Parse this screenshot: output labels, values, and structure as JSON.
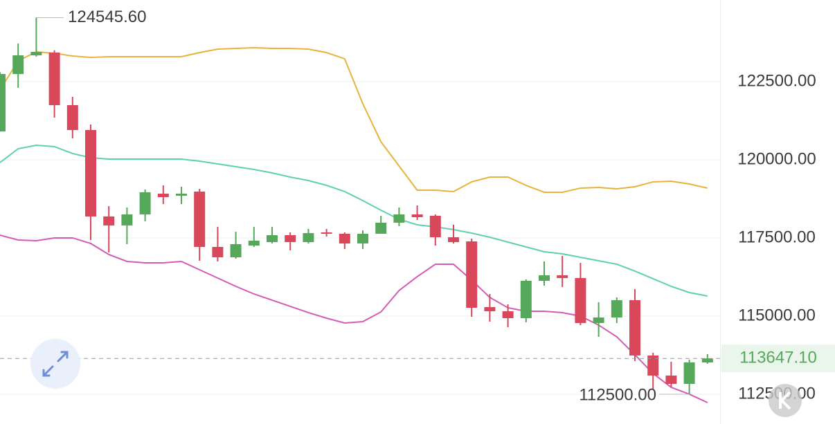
{
  "chart_data": {
    "type": "candlestick",
    "up_color": "#55a85a",
    "down_color": "#d9475a",
    "ylim": [
      111550,
      125110
    ],
    "yticks": [
      {
        "value": 122500,
        "label": "122500.00"
      },
      {
        "value": 120000,
        "label": "120000.00"
      },
      {
        "value": 117500,
        "label": "117500.00"
      },
      {
        "value": 115000,
        "label": "115000.00"
      },
      {
        "value": 112500,
        "label": "112500.00"
      }
    ],
    "grid": true,
    "open": [
      120907,
      122743,
      123341,
      123430,
      121748,
      120952,
      118187,
      117900,
      118253,
      118916,
      118850,
      118983,
      117213,
      116882,
      117257,
      117368,
      117589,
      117368,
      117678,
      117634,
      117324,
      117634,
      117988,
      118253,
      118209,
      117523,
      117390,
      115289,
      115156,
      114935,
      116129,
      116306,
      116218,
      114780,
      114957,
      115510,
      113740,
      113099,
      112833,
      113519
    ],
    "high": [
      122800,
      123717,
      124545.6,
      123500,
      122013,
      121129,
      118518,
      118474,
      119049,
      119182,
      119137,
      119071,
      117855,
      117700,
      117855,
      117855,
      117678,
      117789,
      117789,
      117678,
      117744,
      118209,
      118474,
      118540,
      118253,
      117921,
      117479,
      115709,
      115377,
      116173,
      116749,
      116926,
      116705,
      115444,
      115599,
      115864,
      113829,
      113541,
      113608,
      113785
    ],
    "low": [
      120900,
      122301,
      123300,
      121350,
      120686,
      117435,
      117036,
      117302,
      118032,
      118584,
      118584,
      116771,
      116749,
      116838,
      117213,
      117324,
      117103,
      117324,
      117545,
      117147,
      117147,
      117634,
      117877,
      118076,
      117257,
      117324,
      114979,
      114824,
      114647,
      114802,
      115975,
      115931,
      114714,
      114338,
      114780,
      113563,
      112678,
      112723,
      112500,
      113475
    ],
    "close": [
      122743,
      123341,
      123451,
      121748,
      120952,
      118187,
      117900,
      118253,
      118960,
      118806,
      118916,
      117213,
      116882,
      117302,
      117413,
      117589,
      117368,
      117655,
      117634,
      117324,
      117634,
      117988,
      118253,
      118164,
      117523,
      117368,
      115267,
      115156,
      114935,
      116129,
      116306,
      116218,
      114780,
      114957,
      115510,
      113740,
      113099,
      112833,
      113519,
      113647.1
    ],
    "lines": [
      {
        "color": "#e8b33a",
        "values": [
          122235,
          123164,
          123451,
          123407,
          123318,
          123274,
          123296,
          123296,
          123296,
          123296,
          123296,
          123429,
          123540,
          123562,
          123584,
          123562,
          123562,
          123540,
          123429,
          123230,
          121792,
          120576,
          119801,
          119027,
          119027,
          118983,
          119293,
          119447,
          119447,
          119182,
          118961,
          118961,
          119094,
          119116,
          119071,
          119138,
          119293,
          119315,
          119226,
          119094
        ]
      },
      {
        "color": "#5ecfb1",
        "values": [
          119912,
          120354,
          120465,
          120421,
          120200,
          120067,
          120023,
          120023,
          120023,
          120023,
          120023,
          119956,
          119868,
          119779,
          119691,
          119580,
          119447,
          119337,
          119182,
          118983,
          118695,
          118386,
          118098,
          117921,
          117855,
          117766,
          117656,
          117523,
          117368,
          117213,
          117058,
          116992,
          116882,
          116771,
          116660,
          116439,
          116196,
          115952,
          115753,
          115643
        ]
      },
      {
        "color": "#d45bb5",
        "values": [
          117589,
          117435,
          117412,
          117501,
          117501,
          117324,
          116970,
          116749,
          116705,
          116705,
          116749,
          116483,
          116218,
          115952,
          115709,
          115510,
          115311,
          115112,
          114935,
          114780,
          114824,
          115134,
          115820,
          116262,
          116660,
          116660,
          116152,
          115599,
          115267,
          115156,
          115156,
          115112,
          115001,
          114714,
          114338,
          113763,
          113165,
          112723,
          112502,
          112236
        ]
      }
    ],
    "high_label": {
      "value": 124545.6,
      "label": "124545.60"
    },
    "low_label": {
      "value": 112500,
      "label": "112500.00"
    },
    "last_price": {
      "value": 113647.1,
      "label": "113647.10"
    }
  }
}
